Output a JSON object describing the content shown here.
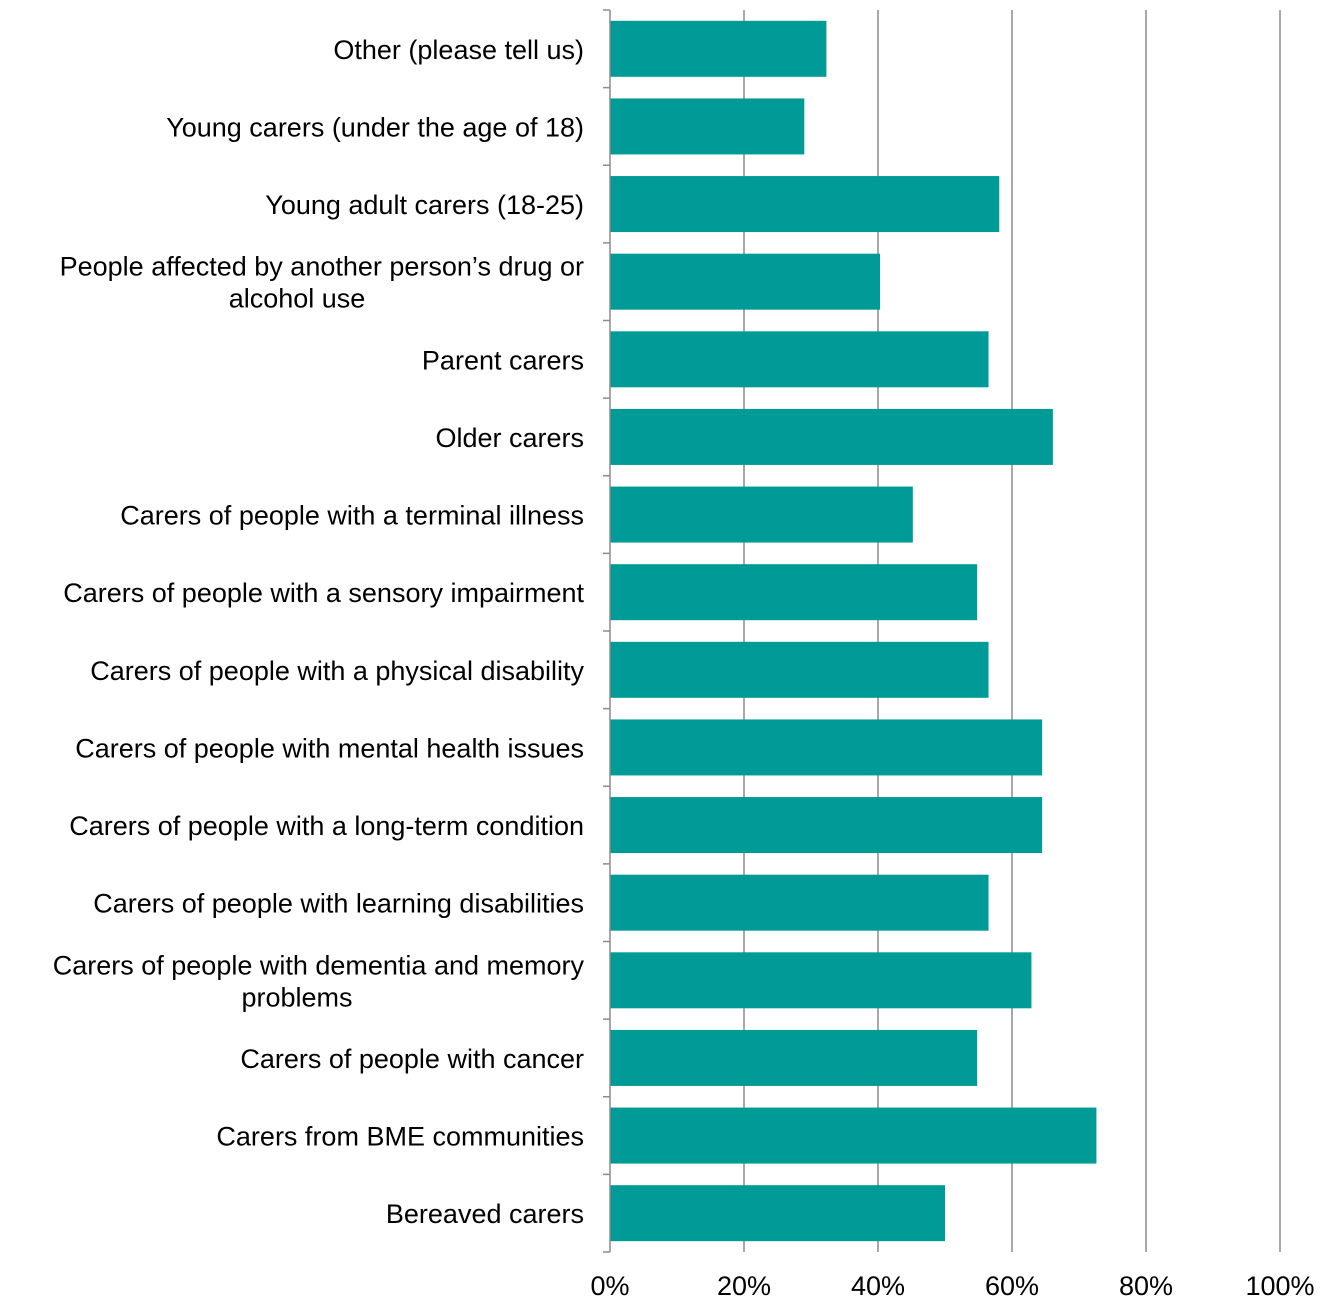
{
  "chart_data": {
    "type": "bar",
    "orientation": "horizontal",
    "title": "",
    "xlabel": "",
    "ylabel": "",
    "xlim": [
      0,
      100
    ],
    "grid": true,
    "legend": "none",
    "bar_color": "#009a97",
    "grid_color": "#8c8c8c",
    "x_ticks": [
      "0%",
      "20%",
      "40%",
      "60%",
      "80%",
      "100%"
    ],
    "categories": [
      [
        "Other (please tell us)"
      ],
      [
        "Young carers (under the age of 18)"
      ],
      [
        "Young adult carers (18-25)"
      ],
      [
        "People affected by another person’s drug or",
        "alcohol use"
      ],
      [
        "Parent carers"
      ],
      [
        "Older carers"
      ],
      [
        "Carers of people with a terminal illness"
      ],
      [
        "Carers of people with a sensory impairment"
      ],
      [
        "Carers of people with a physical disability"
      ],
      [
        "Carers of people with mental health issues"
      ],
      [
        "Carers of people with a long-term condition"
      ],
      [
        "Carers of people with learning disabilities"
      ],
      [
        "Carers of people with dementia and memory",
        "problems"
      ],
      [
        "Carers of people with cancer"
      ],
      [
        "Carers from BME communities"
      ],
      [
        "Bereaved carers"
      ]
    ],
    "values": [
      32.3,
      29.0,
      58.1,
      40.3,
      56.5,
      66.1,
      45.2,
      54.8,
      56.5,
      64.5,
      64.5,
      56.5,
      62.9,
      54.8,
      72.6,
      50.0
    ]
  }
}
